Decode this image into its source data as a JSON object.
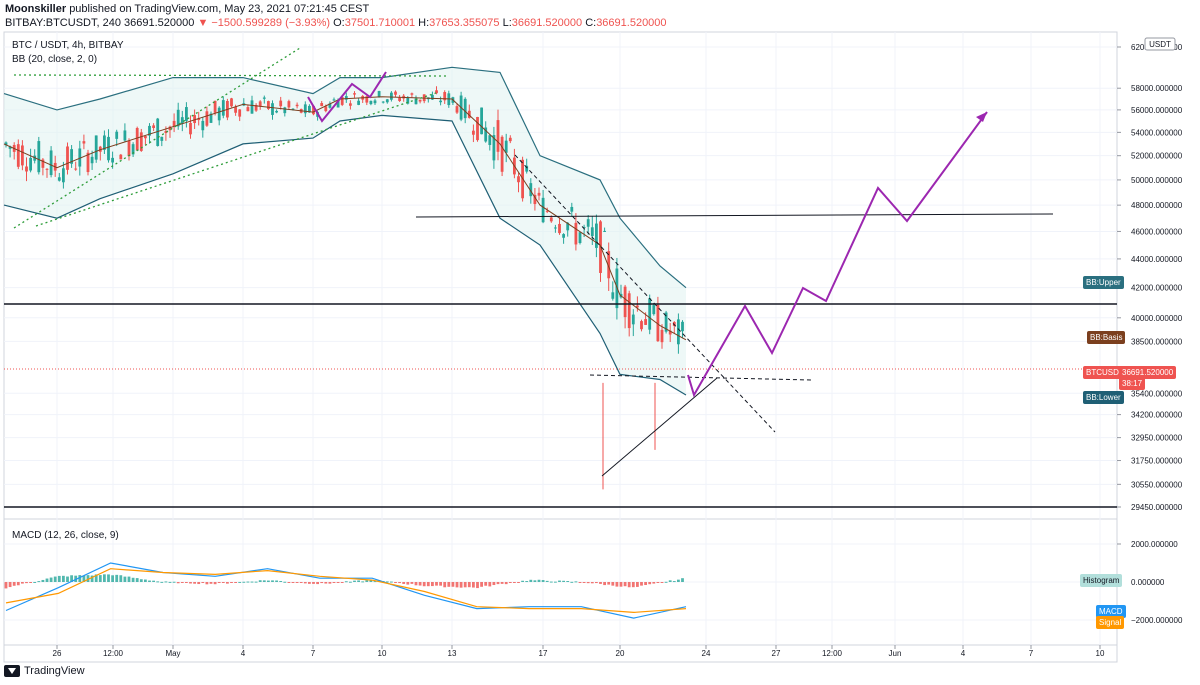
{
  "header": {
    "author": "Moonskiller",
    "published_text": "published on TradingView.com, May 23, 2021 07:21:45 CEST",
    "symbol": "BITBAY:BTCUSDT, 240",
    "last": "36691.520000",
    "change": "▼ −1500.599289 (−3.93%)",
    "o_label": "O:",
    "o": "37501.710001",
    "h_label": "H:",
    "h": "37653.355075",
    "l_label": "L:",
    "l": "36691.520000",
    "c_label": "C:",
    "c": "36691.520000"
  },
  "pane_main": {
    "title": "BTC / USDT, 4h, BITBAY",
    "indicator": "BB (20, close, 2, 0)",
    "currency": "USDT"
  },
  "pane_macd": {
    "indicator": "MACD (12, 26, close, 9)"
  },
  "tags": {
    "bb_upper": "BB:Upper",
    "bb_basis": "BB:Basis",
    "symbol_price": "BTCUSDT",
    "symbol_value": "36691.520000",
    "countdown": "38:17",
    "bb_lower": "BB:Lower",
    "histogram": "Histogram",
    "macd": "MACD",
    "signal": "Signal"
  },
  "footer": {
    "brand": "TradingView"
  },
  "colors": {
    "bb_upper": "#2a6f7f",
    "bb_basis": "#7b3f1e",
    "bb_lower": "#1f5f75",
    "price_tag": "#ef5350",
    "up_candle": "#26a69a",
    "down_candle": "#ef5350",
    "projection": "#9c27b0",
    "macd_line": "#2196f3",
    "signal_line": "#ff9800",
    "hist_up": "#26a69a",
    "hist_down": "#ef5350"
  },
  "chart_data": [
    {
      "type": "line",
      "title": "BTC / USDT, 4h, BITBAY",
      "y_ticks": [
        62000,
        58000,
        56000,
        54000,
        52000,
        50000,
        48000,
        46000,
        44000,
        42000,
        40000,
        38500,
        35400,
        34200,
        32950,
        31750,
        30550,
        29450
      ],
      "y_tick_labels": [
        "62000.000000",
        "58000.000000",
        "56000.000000",
        "54000.000000",
        "52000.000000",
        "50000.000000",
        "48000.000000",
        "46000.000000",
        "44000.000000",
        "42000.000000",
        "40000.000000",
        "38500.000000",
        "35400.000000",
        "34200.000000",
        "32950.000000",
        "31750.000000",
        "30550.000000",
        "29450.000000"
      ],
      "x_tick_labels": [
        "26",
        "12:00",
        "May",
        "4",
        "7",
        "10",
        "13",
        "17",
        "20",
        "24",
        "27",
        "12:00",
        "Jun",
        "4",
        "7",
        "10"
      ],
      "log_scale": true,
      "last_price": 36691.52,
      "series": [
        {
          "name": "BB:Upper",
          "x": [
            "Apr 24",
            "Apr 26",
            "Apr 28",
            "May 1",
            "May 3",
            "May 6",
            "May 8",
            "May 10",
            "May 12",
            "May 14",
            "May 16",
            "May 18",
            "May 20",
            "May 22",
            "May 23"
          ],
          "values": [
            57500,
            56000,
            57000,
            59000,
            59000,
            57500,
            59000,
            59000,
            60000,
            59500,
            52000,
            50000,
            47000,
            43500,
            42000
          ]
        },
        {
          "name": "BB:Basis",
          "x": [
            "Apr 24",
            "Apr 26",
            "Apr 28",
            "May 1",
            "May 3",
            "May 6",
            "May 8",
            "May 10",
            "May 12",
            "May 14",
            "May 16",
            "May 18",
            "May 20",
            "May 22",
            "May 23"
          ],
          "values": [
            53000,
            51000,
            52500,
            54500,
            56500,
            55800,
            57000,
            57200,
            57000,
            53000,
            48000,
            45000,
            41500,
            39500,
            38600
          ]
        },
        {
          "name": "BB:Lower",
          "x": [
            "Apr 24",
            "Apr 26",
            "Apr 28",
            "May 1",
            "May 3",
            "May 6",
            "May 8",
            "May 10",
            "May 12",
            "May 14",
            "May 16",
            "May 18",
            "May 20",
            "May 22",
            "May 23"
          ],
          "values": [
            48000,
            47000,
            48500,
            50500,
            53000,
            53500,
            55000,
            55500,
            55000,
            47000,
            45000,
            39000,
            36500,
            36200,
            35300
          ]
        }
      ]
    },
    {
      "type": "bar",
      "title": "MACD (12, 26, close, 9)",
      "y_ticks": [
        2000,
        0,
        -2000
      ],
      "y_tick_labels": [
        "2000.000000",
        "0.000000",
        "−2000.000000"
      ],
      "series": [
        {
          "name": "MACD",
          "values": [
            -1500,
            -300,
            1000,
            500,
            300,
            700,
            200,
            200,
            -700,
            -1400,
            -1300,
            -1300,
            -1900,
            -1300
          ]
        },
        {
          "name": "Signal",
          "values": [
            -1100,
            -600,
            700,
            500,
            400,
            600,
            300,
            100,
            -500,
            -1300,
            -1400,
            -1400,
            -1600,
            -1400
          ]
        },
        {
          "name": "Histogram",
          "values": [
            -300,
            300,
            400,
            0,
            -100,
            100,
            -100,
            100,
            -200,
            -300,
            100,
            0,
            -300,
            200
          ]
        }
      ]
    }
  ]
}
